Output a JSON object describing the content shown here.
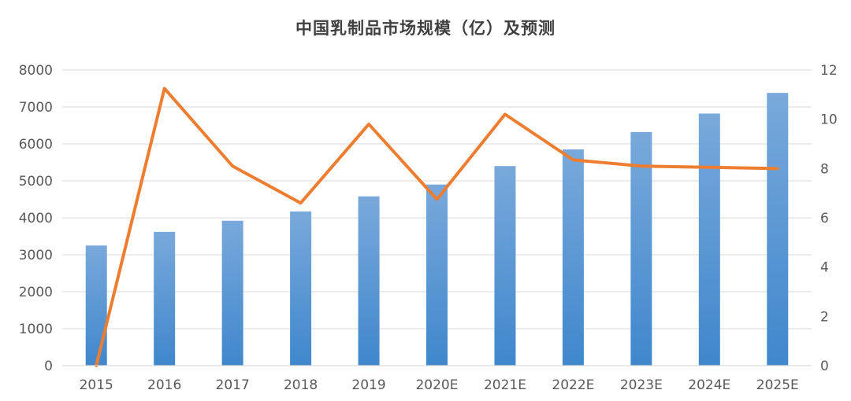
{
  "chart_data": {
    "type": "bar",
    "title": "中国乳制品市场规模（亿）及预测",
    "categories": [
      "2015",
      "2016",
      "2017",
      "2018",
      "2019",
      "2020E",
      "2021E",
      "2022E",
      "2023E",
      "2024E",
      "2025E"
    ],
    "series": [
      {
        "type": "bar",
        "axis": "left",
        "values": [
          3250,
          3620,
          3920,
          4170,
          4580,
          4900,
          5400,
          5850,
          6320,
          6820,
          7380
        ]
      },
      {
        "type": "line",
        "axis": "right",
        "values": [
          0,
          11.25,
          8.1,
          6.6,
          9.8,
          6.75,
          10.2,
          8.35,
          8.1,
          8.05,
          8.0
        ]
      }
    ],
    "y_left": {
      "min": 0,
      "max": 8000,
      "ticks": [
        "0",
        "1000",
        "2000",
        "3000",
        "4000",
        "5000",
        "6000",
        "7000",
        "8000"
      ]
    },
    "y_right": {
      "min": 0,
      "max": 12,
      "ticks": [
        "0",
        "2",
        "4",
        "6",
        "8",
        "10",
        "12"
      ]
    },
    "grid": true,
    "legend": "none",
    "colors": {
      "bar_top": "#79a9db",
      "bar_bottom": "#3f87cc",
      "line": "#ed7d31",
      "grid": "#d9d9d9",
      "text": "#595959"
    }
  }
}
